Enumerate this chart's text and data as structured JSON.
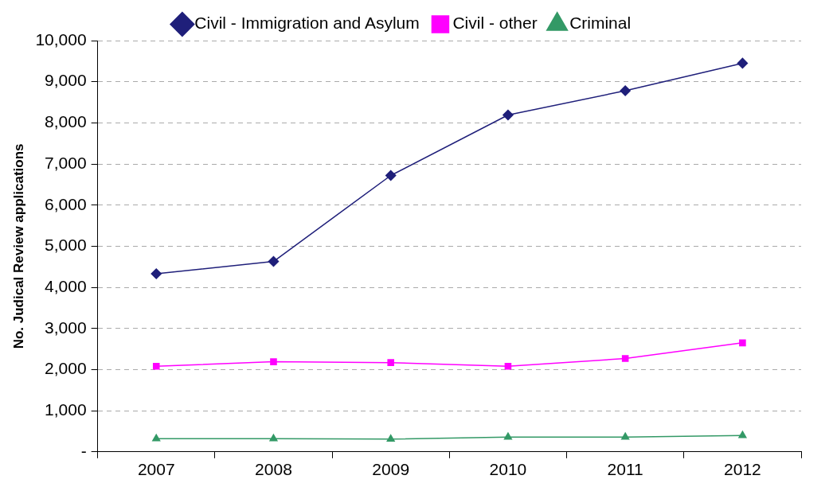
{
  "chart_data": {
    "type": "line",
    "ylabel": "No. Judical Review applications",
    "categories": [
      "2007",
      "2008",
      "2009",
      "2010",
      "2011",
      "2012"
    ],
    "series": [
      {
        "name": "Civil - Immigration and Asylum",
        "color": "#1f1f7a",
        "marker": "diamond",
        "values": [
          4330,
          4630,
          6720,
          8190,
          8780,
          9450
        ]
      },
      {
        "name": "Civil - other",
        "color": "#ff00ff",
        "marker": "square",
        "values": [
          2080,
          2190,
          2170,
          2080,
          2270,
          2650
        ]
      },
      {
        "name": "Criminal",
        "color": "#339966",
        "marker": "triangle",
        "values": [
          320,
          320,
          310,
          360,
          360,
          400
        ]
      }
    ],
    "ylim": [
      0,
      10000
    ],
    "yticks": [
      {
        "value": 0,
        "label": "-"
      },
      {
        "value": 1000,
        "label": "1,000"
      },
      {
        "value": 2000,
        "label": "2,000"
      },
      {
        "value": 3000,
        "label": "3,000"
      },
      {
        "value": 4000,
        "label": "4,000"
      },
      {
        "value": 5000,
        "label": "5,000"
      },
      {
        "value": 6000,
        "label": "6,000"
      },
      {
        "value": 7000,
        "label": "7,000"
      },
      {
        "value": 8000,
        "label": "8,000"
      },
      {
        "value": 9000,
        "label": "9,000"
      },
      {
        "value": 10000,
        "label": "10,000"
      }
    ],
    "grid": "y",
    "legend": "top",
    "line_style": "solid"
  }
}
